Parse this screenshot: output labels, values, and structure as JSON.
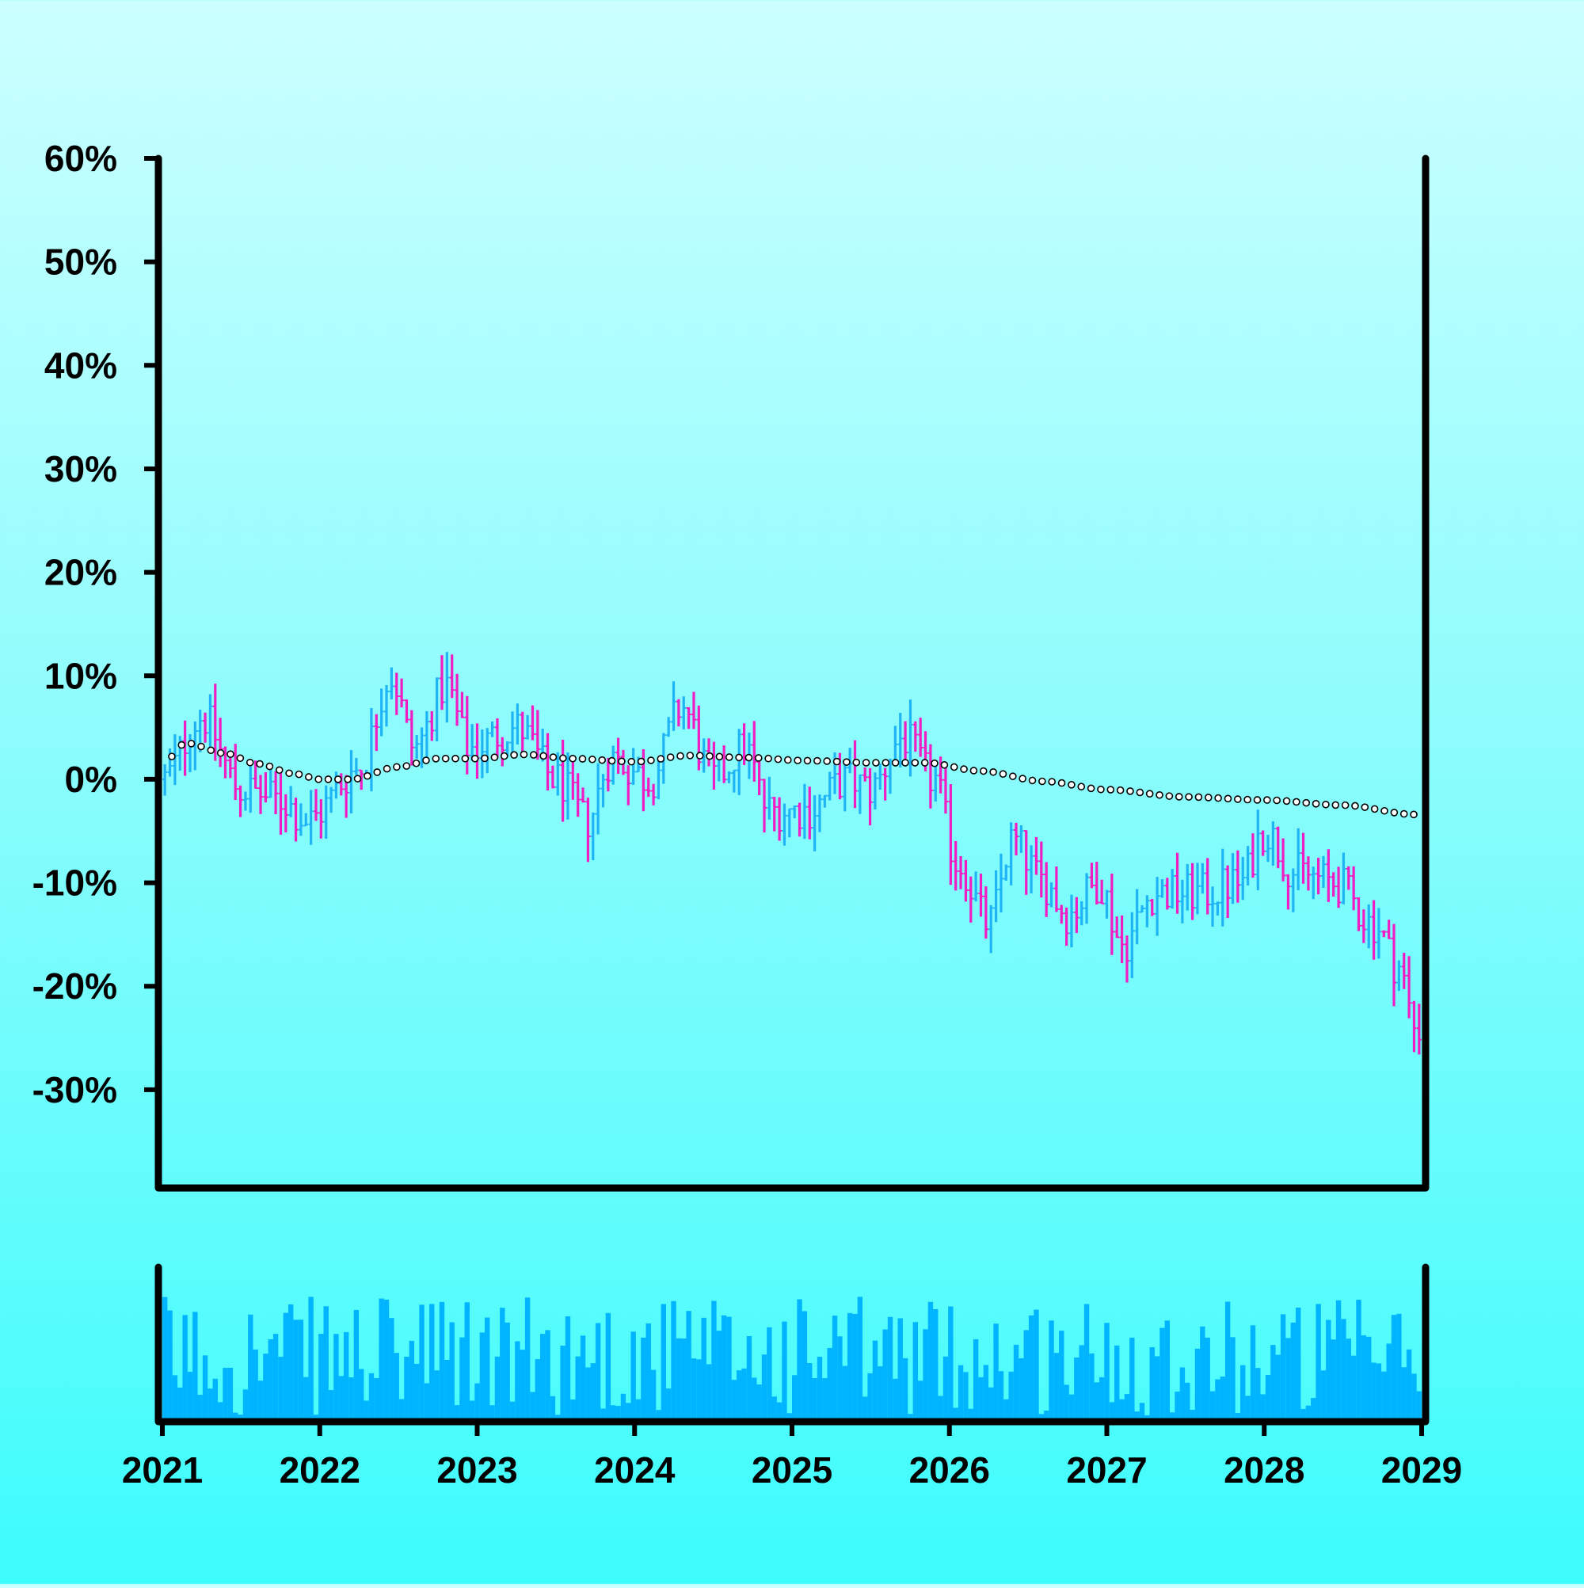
{
  "chart_data": {
    "type": "ohlc",
    "title": "",
    "xlabel": "",
    "ylabel": "",
    "y_tick_labels": [
      "60%",
      "50%",
      "40%",
      "30%",
      "20%",
      "10%",
      "0%",
      "-10%",
      "-20%",
      "-30%"
    ],
    "y_tick_values": [
      60,
      50,
      40,
      30,
      20,
      10,
      0,
      -10,
      -20,
      -30
    ],
    "ylim": [
      -39.5,
      60
    ],
    "x_tick_labels": [
      "2021",
      "2022",
      "2023",
      "2024",
      "2025",
      "2026",
      "2027",
      "2028",
      "2029"
    ],
    "xlim": [
      2021.0,
      2029.0
    ],
    "colors": {
      "up": "#1fb4f5",
      "down": "#f01cc4",
      "trend_marker_fill": "#ffffff",
      "trend_marker_stroke": "#000000",
      "volume": "#00b4ff",
      "axis": "#000000"
    },
    "close_anchors": [
      [
        2021.0,
        0
      ],
      [
        2021.25,
        6
      ],
      [
        2021.5,
        -1
      ],
      [
        2021.75,
        -2
      ],
      [
        2021.92,
        -4
      ],
      [
        2022.25,
        1
      ],
      [
        2022.45,
        10
      ],
      [
        2022.6,
        3
      ],
      [
        2022.8,
        9
      ],
      [
        2022.95,
        3
      ],
      [
        2023.25,
        5
      ],
      [
        2023.5,
        0
      ],
      [
        2023.7,
        -4
      ],
      [
        2023.85,
        2
      ],
      [
        2024.1,
        0
      ],
      [
        2024.3,
        7
      ],
      [
        2024.5,
        0
      ],
      [
        2024.7,
        3
      ],
      [
        2024.85,
        -3
      ],
      [
        2025.1,
        -3
      ],
      [
        2025.35,
        0
      ],
      [
        2025.5,
        -1
      ],
      [
        2025.7,
        4
      ],
      [
        2025.9,
        0
      ],
      [
        2026.05,
        -8
      ],
      [
        2026.25,
        -14
      ],
      [
        2026.4,
        -6
      ],
      [
        2026.6,
        -10
      ],
      [
        2026.75,
        -13
      ],
      [
        2026.95,
        -10
      ],
      [
        2027.1,
        -16
      ],
      [
        2027.3,
        -11
      ],
      [
        2027.6,
        -11
      ],
      [
        2027.85,
        -10
      ],
      [
        2028.0,
        -5
      ],
      [
        2028.2,
        -9
      ],
      [
        2028.45,
        -10
      ],
      [
        2028.7,
        -14
      ],
      [
        2028.85,
        -18
      ],
      [
        2028.96,
        -24
      ]
    ],
    "trend_anchors": [
      [
        2021.0,
        1.5
      ],
      [
        2021.15,
        3.5
      ],
      [
        2021.4,
        2.5
      ],
      [
        2021.6,
        1.5
      ],
      [
        2021.85,
        0.5
      ],
      [
        2022.0,
        0
      ],
      [
        2022.2,
        0
      ],
      [
        2022.5,
        1.2
      ],
      [
        2022.75,
        2
      ],
      [
        2023.0,
        2
      ],
      [
        2023.3,
        2.4
      ],
      [
        2023.6,
        2.0
      ],
      [
        2024.0,
        1.7
      ],
      [
        2024.35,
        2.3
      ],
      [
        2024.7,
        2.1
      ],
      [
        2025.1,
        1.8
      ],
      [
        2025.5,
        1.6
      ],
      [
        2025.85,
        1.6
      ],
      [
        2026.2,
        0.8
      ],
      [
        2026.6,
        -0.2
      ],
      [
        2027.0,
        -1.0
      ],
      [
        2027.5,
        -1.7
      ],
      [
        2028.0,
        -2.0
      ],
      [
        2028.5,
        -2.5
      ],
      [
        2028.96,
        -3.4
      ]
    ],
    "bar_count": 250,
    "trend_point_count": 128
  }
}
